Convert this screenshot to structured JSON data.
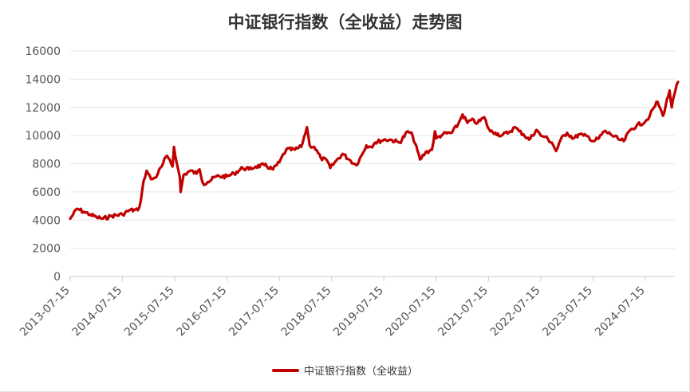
{
  "chart_data": {
    "type": "line",
    "title": "中证银行指数（全收益）走势图",
    "xlabel": "",
    "ylabel": "",
    "ylim": [
      0,
      16000
    ],
    "yticks": [
      0,
      2000,
      4000,
      6000,
      8000,
      10000,
      12000,
      14000,
      16000
    ],
    "xticks": [
      "2013-07-15",
      "2014-07-15",
      "2015-07-15",
      "2016-07-15",
      "2017-07-15",
      "2018-07-15",
      "2019-07-15",
      "2020-07-15",
      "2021-07-15",
      "2022-07-15",
      "2023-07-15",
      "2024-07-15"
    ],
    "x_range": [
      "2013-07-15",
      "2025-02-28"
    ],
    "grid": true,
    "legend_position": "bottom-center",
    "series": [
      {
        "name": "中证银行指数（全收益）",
        "color": "#c00000",
        "x": [
          "2013-07-15",
          "2013-09-01",
          "2013-10-15",
          "2013-12-01",
          "2014-01-15",
          "2014-03-01",
          "2014-05-01",
          "2014-07-15",
          "2014-09-01",
          "2014-10-31",
          "2014-11-21",
          "2014-12-10",
          "2014-12-31",
          "2015-01-31",
          "2015-03-01",
          "2015-04-15",
          "2015-05-15",
          "2015-06-10",
          "2015-06-30",
          "2015-07-10",
          "2015-08-01",
          "2015-08-20",
          "2015-08-26",
          "2015-09-15",
          "2015-11-01",
          "2015-12-15",
          "2016-01-05",
          "2016-01-29",
          "2016-03-01",
          "2016-05-01",
          "2016-07-15",
          "2016-09-01",
          "2016-11-01",
          "2016-12-15",
          "2017-02-01",
          "2017-04-01",
          "2017-06-01",
          "2017-07-15",
          "2017-09-01",
          "2017-11-01",
          "2017-12-15",
          "2018-01-24",
          "2018-02-12",
          "2018-03-15",
          "2018-05-01",
          "2018-06-15",
          "2018-07-06",
          "2018-08-15",
          "2018-10-01",
          "2018-11-15",
          "2019-01-03",
          "2019-02-15",
          "2019-03-15",
          "2019-04-15",
          "2019-05-15",
          "2019-07-15",
          "2019-09-01",
          "2019-11-01",
          "2019-12-31",
          "2020-02-01",
          "2020-03-24",
          "2020-05-01",
          "2020-06-15",
          "2020-07-06",
          "2020-07-15",
          "2020-09-01",
          "2020-11-01",
          "2020-12-15",
          "2021-01-15",
          "2021-02-18",
          "2021-03-15",
          "2021-05-01",
          "2021-06-15",
          "2021-07-15",
          "2021-07-28",
          "2021-09-01",
          "2021-10-15",
          "2021-12-15",
          "2022-01-15",
          "2022-02-15",
          "2022-03-15",
          "2022-04-25",
          "2022-06-15",
          "2022-07-15",
          "2022-08-15",
          "2022-10-01",
          "2022-10-31",
          "2022-12-01",
          "2023-01-15",
          "2023-03-01",
          "2023-04-15",
          "2023-05-10",
          "2023-06-15",
          "2023-07-15",
          "2023-08-25",
          "2023-10-01",
          "2023-11-15",
          "2024-01-15",
          "2024-02-15",
          "2024-04-01",
          "2024-05-15",
          "2024-07-15",
          "2024-08-15",
          "2024-09-13",
          "2024-10-08",
          "2024-11-15",
          "2024-12-31",
          "2025-01-15",
          "2025-02-10",
          "2025-02-28"
        ],
        "values": [
          4100,
          4800,
          4600,
          4400,
          4200,
          4100,
          4300,
          4400,
          4700,
          4700,
          5400,
          6800,
          7500,
          6900,
          7000,
          7800,
          8500,
          8300,
          7800,
          9200,
          7900,
          7000,
          6000,
          7200,
          7500,
          7300,
          7600,
          6600,
          6700,
          7100,
          7100,
          7300,
          7700,
          7600,
          7800,
          7900,
          7600,
          8100,
          9000,
          9000,
          9200,
          10600,
          9300,
          9200,
          8400,
          8200,
          7700,
          8200,
          8700,
          8300,
          7900,
          8700,
          9300,
          9200,
          9500,
          9700,
          9700,
          9500,
          10300,
          10000,
          8300,
          8800,
          9000,
          10300,
          9800,
          10100,
          10200,
          10800,
          11500,
          10900,
          11100,
          10900,
          11300,
          10500,
          10300,
          10200,
          10000,
          10300,
          10600,
          10300,
          10100,
          9700,
          10400,
          10000,
          9900,
          9500,
          8900,
          9700,
          10200,
          9800,
          10100,
          10000,
          9900,
          9600,
          9800,
          10300,
          10100,
          9700,
          9600,
          10400,
          10700,
          11000,
          11400,
          12000,
          12400,
          11400,
          13200,
          12000,
          13200,
          13800
        ]
      }
    ]
  }
}
